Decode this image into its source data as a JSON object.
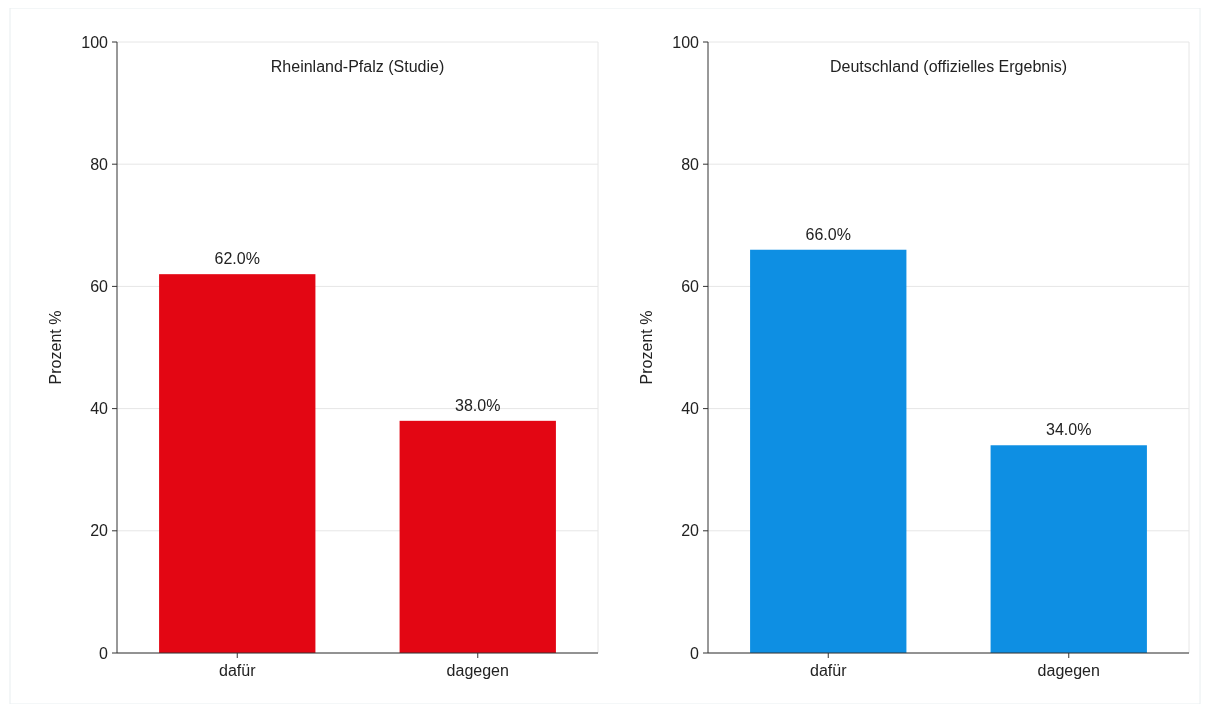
{
  "chart_data": [
    {
      "type": "bar",
      "title": "Rheinland-Pfalz (Studie)",
      "ylabel": "Prozent %",
      "categories": [
        "dafür",
        "dagegen"
      ],
      "values": [
        62,
        38
      ],
      "value_labels": [
        "62.0%",
        "38.0%"
      ],
      "color": "#e30613",
      "ylim": [
        0,
        100
      ],
      "yticks": [
        0,
        20,
        40,
        60,
        80,
        100
      ],
      "grid": "y"
    },
    {
      "type": "bar",
      "title": "Deutschland (offizielles Ergebnis)",
      "ylabel": "Prozent %",
      "categories": [
        "dafür",
        "dagegen"
      ],
      "values": [
        66,
        34
      ],
      "value_labels": [
        "66.0%",
        "34.0%"
      ],
      "color": "#0e8fe3",
      "ylim": [
        0,
        100
      ],
      "yticks": [
        0,
        20,
        40,
        60,
        80,
        100
      ],
      "grid": "y"
    }
  ]
}
